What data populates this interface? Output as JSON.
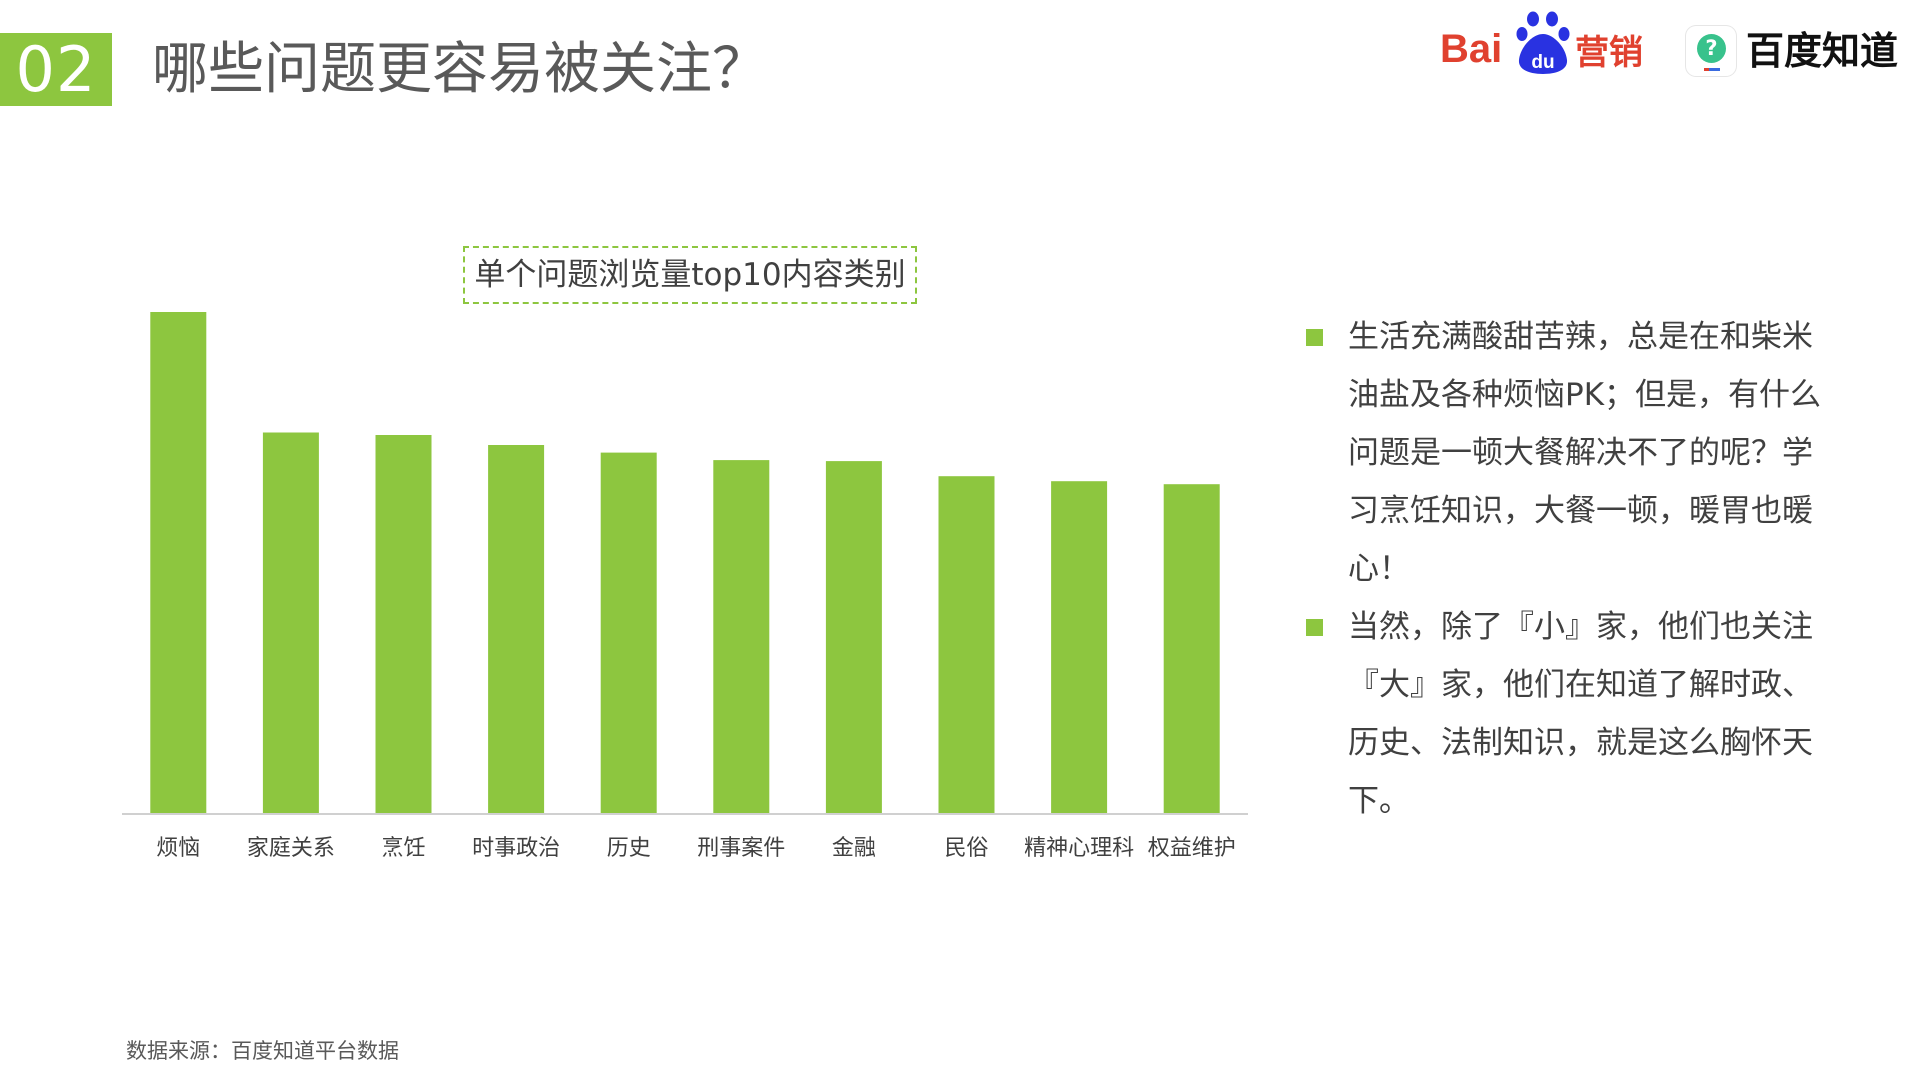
{
  "header": {
    "section_number": "02",
    "title": "哪些问题更容易被关注？"
  },
  "logos": {
    "baidu_letters": "Bai",
    "baidu_paw_text": "du",
    "baidu_suffix": "营销",
    "zhidao_icon_glyph": "?",
    "zhidao_name": "百度知道"
  },
  "colors": {
    "accent": "#8dc63f",
    "title_text": "#595959",
    "body_text": "#404040",
    "baidu_red": "#e0412f",
    "baidu_blue": "#2932e1"
  },
  "chart_data": {
    "type": "bar",
    "title": "单个问题浏览量top10内容类别",
    "xlabel": "",
    "ylabel": "",
    "categories": [
      "烦恼",
      "家庭关系",
      "烹饪",
      "时事政治",
      "历史",
      "刑事案件",
      "金融",
      "民俗",
      "精神心理科",
      "权益维护"
    ],
    "values": [
      100,
      76,
      75.5,
      73.5,
      72,
      70.5,
      70.3,
      67.3,
      66.3,
      65.7
    ],
    "ylim": [
      0,
      100
    ],
    "grid": false,
    "legend": "none",
    "bar_color": "#8dc63f"
  },
  "bullets": [
    "生活充满酸甜苦辣，总是在和柴米油盐及各种烦恼PK；但是，有什么问题是一顿大餐解决不了的呢？学习烹饪知识，大餐一顿，暖胃也暖心！",
    "当然，除了『小』家，他们也关注『大』家，他们在知道了解时政、历史、法制知识，就是这么胸怀天下。"
  ],
  "footer": {
    "source": "数据来源：百度知道平台数据"
  }
}
